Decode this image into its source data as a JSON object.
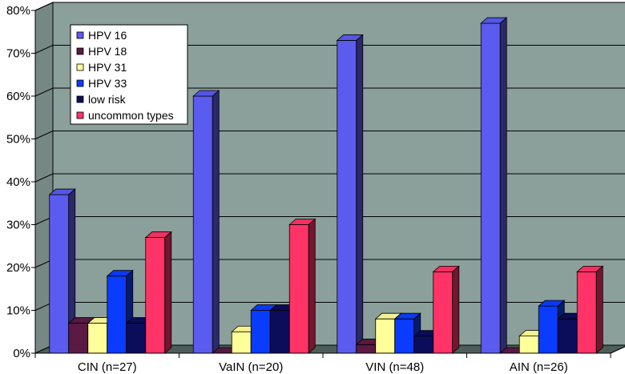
{
  "chart_data": {
    "type": "bar",
    "categories": [
      "CIN (n=27)",
      "VaIN (n=20)",
      "VIN (n=48)",
      "AIN (n=26)"
    ],
    "series": [
      {
        "name": "HPV 16",
        "color": "#5b5bf0",
        "values": [
          37,
          60,
          73,
          77
        ]
      },
      {
        "name": "HPV 18",
        "color": "#5a1a44",
        "values": [
          7,
          0,
          2,
          0
        ]
      },
      {
        "name": "HPV 31",
        "color": "#ffff99",
        "values": [
          7,
          5,
          8,
          4
        ]
      },
      {
        "name": "HPV 33",
        "color": "#0a3cff",
        "values": [
          18,
          10,
          8,
          11
        ]
      },
      {
        "name": "low risk",
        "color": "#0c0c5c",
        "values": [
          7,
          10,
          4,
          8
        ]
      },
      {
        "name": "uncommon types",
        "color": "#ff3366",
        "values": [
          27,
          30,
          19,
          19
        ]
      }
    ],
    "ylim": [
      0,
      80
    ],
    "yticks": [
      "0%",
      "10%",
      "20%",
      "30%",
      "40%",
      "50%",
      "60%",
      "70%",
      "80%"
    ],
    "grid": true,
    "legend": "top-left",
    "colors": {
      "wall": "#8ba09a",
      "floor": "#4c5e5a",
      "grid": "#000000"
    }
  }
}
